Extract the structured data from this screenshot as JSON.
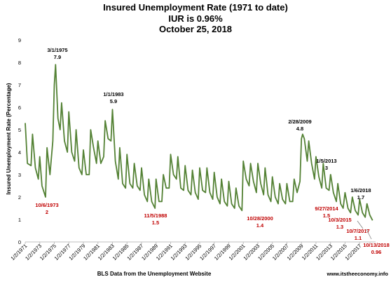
{
  "chart_data": {
    "type": "line",
    "title": "Insured Unemployment Rate (1971 to date)",
    "subtitle_1": "IUR is 0.96%",
    "subtitle_2": "October 25, 2018",
    "ylabel": "Insured Unemployment Rate (Percentage)",
    "xlabel": "BLS Data from the Unemployment Website",
    "footer": "www.itstheeconomy.info",
    "ylim": [
      0,
      9
    ],
    "y_ticks": [
      0,
      1,
      2,
      3,
      4,
      5,
      6,
      7,
      8,
      9
    ],
    "x_ticks": [
      "1/2/1971",
      "1/2/1973",
      "1/2/1975",
      "1/2/1977",
      "1/2/1979",
      "1/2/1981",
      "1/2/1983",
      "1/2/1985",
      "1/2/1987",
      "1/2/1989",
      "1/2/1991",
      "1/2/1993",
      "1/2/1995",
      "1/2/1997",
      "1/2/1999",
      "1/2/2001",
      "1/2/2003",
      "1/2/2005",
      "1/2/2007",
      "1/2/2009",
      "1/2/2011",
      "1/2/2013",
      "1/2/2015",
      "1/2/2017"
    ],
    "x_range": [
      1971.0,
      2019.2
    ],
    "series": [
      {
        "color": "#548235",
        "x": [
          1971.0,
          1971.3,
          1971.8,
          1972.0,
          1972.4,
          1972.8,
          1973.0,
          1973.3,
          1973.8,
          1974.0,
          1974.4,
          1974.8,
          1975.0,
          1975.17,
          1975.5,
          1975.8,
          1976.0,
          1976.4,
          1976.8,
          1977.0,
          1977.4,
          1977.8,
          1978.0,
          1978.4,
          1978.8,
          1979.0,
          1979.4,
          1979.8,
          1980.0,
          1980.4,
          1980.8,
          1981.0,
          1981.4,
          1981.8,
          1982.0,
          1982.4,
          1982.8,
          1983.0,
          1983.4,
          1983.8,
          1984.0,
          1984.4,
          1984.8,
          1985.0,
          1985.4,
          1985.8,
          1986.0,
          1986.4,
          1986.8,
          1987.0,
          1987.4,
          1987.8,
          1988.0,
          1988.4,
          1988.85,
          1989.0,
          1989.4,
          1989.8,
          1990.0,
          1990.4,
          1990.8,
          1991.0,
          1991.4,
          1991.8,
          1992.0,
          1992.4,
          1992.8,
          1993.0,
          1993.4,
          1993.8,
          1994.0,
          1994.4,
          1994.8,
          1995.0,
          1995.4,
          1995.8,
          1996.0,
          1996.4,
          1996.8,
          1997.0,
          1997.4,
          1997.8,
          1998.0,
          1998.4,
          1998.8,
          1999.0,
          1999.4,
          1999.8,
          2000.0,
          2000.4,
          2000.82,
          2001.0,
          2001.4,
          2001.8,
          2002.0,
          2002.4,
          2002.8,
          2003.0,
          2003.4,
          2003.8,
          2004.0,
          2004.4,
          2004.8,
          2005.0,
          2005.4,
          2005.8,
          2006.0,
          2006.4,
          2006.8,
          2007.0,
          2007.4,
          2007.8,
          2008.0,
          2008.4,
          2008.8,
          2009.0,
          2009.16,
          2009.4,
          2009.8,
          2010.0,
          2010.4,
          2010.8,
          2011.0,
          2011.4,
          2011.8,
          2012.0,
          2012.4,
          2012.8,
          2013.0,
          2013.02,
          2013.4,
          2013.8,
          2014.0,
          2014.4,
          2014.74,
          2015.0,
          2015.4,
          2015.76,
          2016.0,
          2016.4,
          2016.8,
          2017.0,
          2017.4,
          2017.77,
          2018.0,
          2018.02,
          2018.4,
          2018.79
        ],
        "y": [
          5.3,
          3.5,
          3.4,
          4.8,
          3.3,
          2.8,
          3.8,
          2.5,
          2.0,
          4.2,
          3.0,
          4.5,
          7.0,
          7.9,
          5.5,
          5.0,
          6.2,
          4.5,
          4.0,
          5.8,
          4.0,
          3.6,
          5.0,
          3.3,
          3.0,
          4.1,
          3.0,
          3.0,
          5.0,
          4.2,
          3.5,
          4.5,
          3.5,
          3.8,
          5.4,
          4.6,
          4.5,
          5.9,
          3.6,
          2.8,
          4.2,
          2.6,
          2.4,
          3.9,
          2.6,
          2.4,
          3.5,
          2.5,
          2.3,
          3.3,
          2.1,
          1.8,
          2.8,
          1.8,
          1.5,
          2.8,
          1.8,
          1.8,
          3.0,
          2.4,
          2.4,
          3.9,
          3.0,
          2.8,
          3.8,
          2.4,
          2.3,
          3.4,
          2.3,
          2.1,
          3.2,
          2.2,
          1.9,
          3.3,
          2.3,
          2.2,
          3.3,
          2.2,
          1.9,
          3.1,
          2.0,
          1.7,
          2.8,
          1.8,
          1.6,
          2.7,
          1.7,
          1.5,
          2.4,
          1.6,
          1.4,
          3.6,
          2.8,
          2.5,
          3.5,
          2.7,
          2.2,
          3.5,
          2.6,
          2.1,
          3.3,
          2.1,
          1.8,
          2.9,
          2.0,
          1.7,
          2.6,
          1.9,
          1.7,
          2.6,
          1.8,
          1.8,
          2.8,
          2.2,
          2.7,
          4.6,
          4.8,
          4.6,
          3.6,
          4.5,
          3.5,
          2.8,
          3.8,
          2.9,
          2.4,
          3.5,
          2.4,
          2.3,
          3.0,
          3.0,
          2.2,
          1.8,
          2.6,
          1.7,
          1.5,
          2.2,
          1.5,
          1.3,
          2.0,
          1.4,
          1.2,
          1.9,
          1.3,
          1.1,
          1.7,
          1.7,
          1.2,
          0.96
        ]
      }
    ],
    "annotations": [
      {
        "date": "3/1/1975",
        "value": "7.9",
        "color": "black"
      },
      {
        "date": "1/1/1983",
        "value": "5.9",
        "color": "black"
      },
      {
        "date": "2/28/2009",
        "value": "4.8",
        "color": "black"
      },
      {
        "date": "1/5/2013",
        "value": "3",
        "color": "black"
      },
      {
        "date": "1/6/2018",
        "value": "1.7",
        "color": "black"
      },
      {
        "date": "10/6/1973",
        "value": "2",
        "color": "red"
      },
      {
        "date": "11/5/1988",
        "value": "1.5",
        "color": "red"
      },
      {
        "date": "10/28/2000",
        "value": "1.4",
        "color": "red"
      },
      {
        "date": "9/27/2014",
        "value": "1.5",
        "color": "red"
      },
      {
        "date": "10/3/2015",
        "value": "1.3",
        "color": "red"
      },
      {
        "date": "10/7/2017",
        "value": "1.1",
        "color": "red"
      },
      {
        "date": "10/13/2018",
        "value": "0.96",
        "color": "red"
      }
    ]
  }
}
